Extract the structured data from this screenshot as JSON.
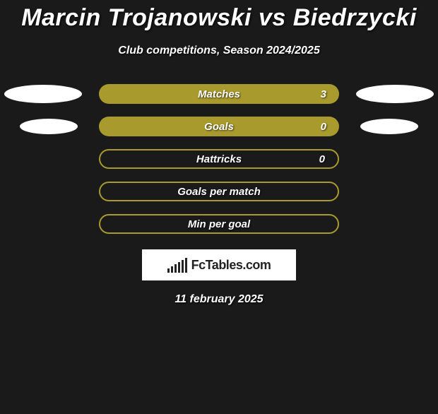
{
  "title": "Marcin Trojanowski vs Biedrzycki",
  "subtitle": "Club competitions, Season 2024/2025",
  "date": "11 february 2025",
  "logo_text": "FcTables.com",
  "colors": {
    "background": "#1a1a1a",
    "bar_full": "#a99a2e",
    "bar_border": "#a99a2e",
    "ellipse": "#ffffff"
  },
  "stats": [
    {
      "label": "Matches",
      "value": "3",
      "fill": "full",
      "ellipses": "wide"
    },
    {
      "label": "Goals",
      "value": "0",
      "fill": "full",
      "ellipses": "narrow"
    },
    {
      "label": "Hattricks",
      "value": "0",
      "fill": "outline",
      "ellipses": "none"
    },
    {
      "label": "Goals per match",
      "value": "",
      "fill": "outline",
      "ellipses": "none"
    },
    {
      "label": "Min per goal",
      "value": "",
      "fill": "outline",
      "ellipses": "none"
    }
  ],
  "logo_bar_heights": [
    6,
    9,
    12,
    15,
    18,
    21
  ]
}
